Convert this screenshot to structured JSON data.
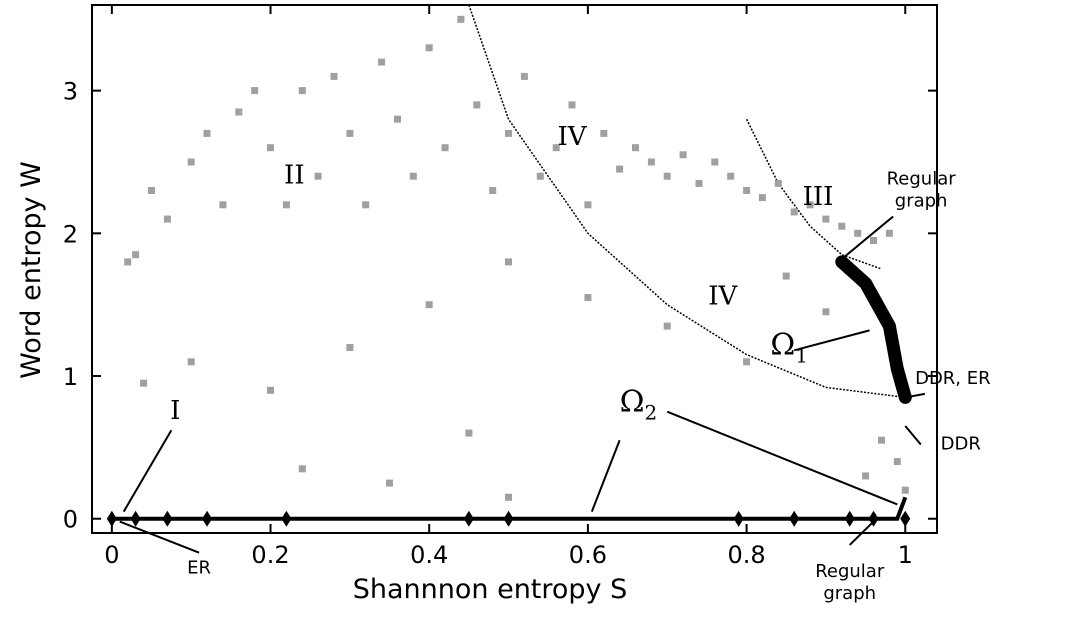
{
  "chart_data": {
    "type": "scatter",
    "title": "",
    "xlabel": "Shannnon entropy S",
    "ylabel": "Word entropy W",
    "xlim": [
      -0.025,
      1.04
    ],
    "ylim": [
      -0.1,
      3.6
    ],
    "xticks": [
      "0",
      "0.2",
      "0.4",
      "0.6",
      "0.8",
      "1"
    ],
    "xtick_values": [
      0,
      0.2,
      0.4,
      0.6,
      0.8,
      1
    ],
    "yticks": [
      "0",
      "1",
      "2",
      "3"
    ],
    "ytick_values": [
      0,
      1,
      2,
      3
    ],
    "grid": false,
    "colors": {
      "scatter": "#a0a0a0",
      "omega": "#000000",
      "axis": "#000000"
    },
    "series": [
      {
        "name": "",
        "values": [
          [
            0.02,
            1.8
          ],
          [
            0.05,
            2.3
          ],
          [
            0.07,
            2.1
          ],
          [
            0.1,
            2.5
          ],
          [
            0.12,
            2.7
          ],
          [
            0.14,
            2.2
          ],
          [
            0.16,
            2.85
          ],
          [
            0.18,
            3.0
          ],
          [
            0.2,
            2.6
          ],
          [
            0.22,
            2.2
          ],
          [
            0.24,
            3.0
          ],
          [
            0.26,
            2.4
          ],
          [
            0.28,
            3.1
          ],
          [
            0.3,
            2.7
          ],
          [
            0.32,
            2.2
          ],
          [
            0.34,
            3.2
          ],
          [
            0.36,
            2.8
          ],
          [
            0.38,
            2.4
          ],
          [
            0.4,
            3.3
          ],
          [
            0.42,
            2.6
          ],
          [
            0.44,
            3.5
          ],
          [
            0.46,
            2.9
          ],
          [
            0.48,
            2.3
          ],
          [
            0.5,
            2.7
          ],
          [
            0.52,
            3.1
          ],
          [
            0.54,
            2.4
          ],
          [
            0.56,
            2.6
          ],
          [
            0.58,
            2.9
          ],
          [
            0.6,
            2.2
          ],
          [
            0.62,
            2.7
          ],
          [
            0.64,
            2.45
          ],
          [
            0.66,
            2.6
          ],
          [
            0.68,
            2.5
          ],
          [
            0.7,
            2.4
          ],
          [
            0.72,
            2.55
          ],
          [
            0.74,
            2.35
          ],
          [
            0.76,
            2.5
          ],
          [
            0.78,
            2.4
          ],
          [
            0.8,
            2.3
          ],
          [
            0.82,
            2.25
          ],
          [
            0.84,
            2.35
          ],
          [
            0.86,
            2.15
          ],
          [
            0.88,
            2.2
          ],
          [
            0.9,
            2.1
          ],
          [
            0.92,
            2.05
          ],
          [
            0.94,
            2.0
          ],
          [
            0.96,
            1.95
          ],
          [
            0.98,
            2.0
          ],
          [
            0.85,
            1.7
          ],
          [
            0.9,
            1.45
          ],
          [
            0.8,
            1.1
          ],
          [
            0.7,
            1.35
          ],
          [
            0.6,
            1.55
          ],
          [
            0.5,
            1.8
          ],
          [
            0.4,
            1.5
          ],
          [
            0.3,
            1.2
          ],
          [
            0.2,
            0.9
          ],
          [
            0.1,
            1.1
          ],
          [
            0.04,
            0.95
          ],
          [
            0.03,
            1.85
          ],
          [
            0.45,
            0.6
          ],
          [
            0.24,
            0.35
          ],
          [
            0.35,
            0.25
          ],
          [
            0.5,
            0.15
          ],
          [
            0.97,
            0.55
          ],
          [
            0.99,
            0.4
          ],
          [
            0.95,
            0.3
          ],
          [
            1.0,
            0.2
          ]
        ]
      }
    ],
    "curves": [
      {
        "name": "Ω1",
        "points": [
          [
            0.92,
            1.8
          ],
          [
            0.95,
            1.65
          ],
          [
            0.98,
            1.35
          ],
          [
            0.99,
            1.05
          ],
          [
            1.0,
            0.85
          ]
        ]
      },
      {
        "name": "Ω2",
        "points": [
          [
            0.0,
            0.0
          ],
          [
            0.2,
            0.0
          ],
          [
            0.4,
            0.0
          ],
          [
            0.6,
            0.0
          ],
          [
            0.8,
            0.0
          ],
          [
            0.99,
            0.0
          ],
          [
            1.0,
            0.15
          ]
        ]
      }
    ],
    "omega2_markers": [
      [
        0.0,
        0.0
      ],
      [
        0.03,
        0.0
      ],
      [
        0.07,
        0.0
      ],
      [
        0.12,
        0.0
      ],
      [
        0.22,
        0.0
      ],
      [
        0.45,
        0.0
      ],
      [
        0.5,
        0.0
      ],
      [
        0.79,
        0.0
      ],
      [
        0.86,
        0.0
      ],
      [
        0.93,
        0.0
      ],
      [
        0.96,
        0.0
      ],
      [
        1.0,
        0.0
      ]
    ],
    "boundaries": [
      {
        "name": "boundary-outer",
        "points": [
          [
            0.45,
            3.6
          ],
          [
            0.5,
            2.8
          ],
          [
            0.6,
            2.0
          ],
          [
            0.7,
            1.5
          ],
          [
            0.8,
            1.15
          ],
          [
            0.9,
            0.92
          ],
          [
            1.0,
            0.85
          ]
        ]
      },
      {
        "name": "boundary-inner",
        "points": [
          [
            0.8,
            2.8
          ],
          [
            0.84,
            2.35
          ],
          [
            0.88,
            2.05
          ],
          [
            0.92,
            1.85
          ],
          [
            0.97,
            1.75
          ]
        ]
      }
    ],
    "region_labels": [
      {
        "text": "I",
        "x": 0.08,
        "y": 0.7
      },
      {
        "text": "II",
        "x": 0.23,
        "y": 2.35
      },
      {
        "text": "III",
        "x": 0.89,
        "y": 2.2
      },
      {
        "text": "IV",
        "x": 0.58,
        "y": 2.62
      },
      {
        "text": "IV",
        "x": 0.77,
        "y": 1.5
      }
    ],
    "omega_labels": [
      {
        "text": "Ω",
        "sub": "1",
        "x": 0.83,
        "y": 1.15
      },
      {
        "text": "Ω",
        "sub": "2",
        "x": 0.64,
        "y": 0.75
      }
    ],
    "annotations": [
      {
        "lines": [
          "Regular",
          "graph"
        ],
        "x": 1.02,
        "y": 2.3,
        "arrow_to": [
          0.92,
          1.82
        ]
      },
      {
        "lines": [
          "DDR, ER"
        ],
        "x": 1.06,
        "y": 0.98,
        "arrow_to": [
          1.0,
          0.85
        ]
      },
      {
        "lines": [
          "DDR"
        ],
        "x": 1.07,
        "y": 0.52,
        "arrow_to": [
          1.0,
          0.65
        ]
      },
      {
        "lines": [
          "ER"
        ],
        "x": 0.11,
        "y": -0.35,
        "arrow_to": [
          0.01,
          -0.02
        ]
      },
      {
        "lines": [
          "Regular",
          "graph"
        ],
        "x": 0.93,
        "y": -0.45,
        "arrow_to": [
          0.96,
          -0.02
        ]
      }
    ]
  }
}
